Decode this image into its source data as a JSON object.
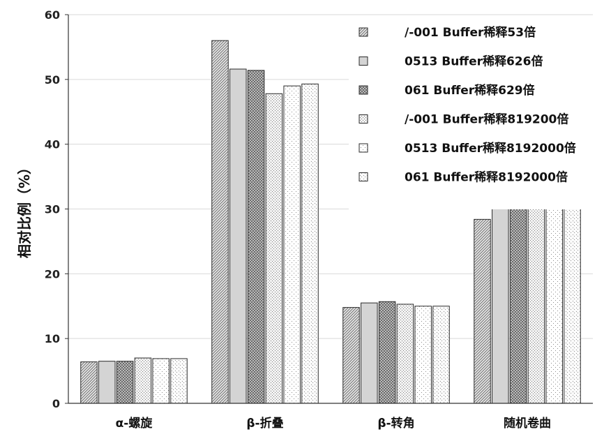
{
  "chart_data": {
    "type": "bar",
    "title": "",
    "xlabel": "",
    "ylabel": "相对比例（%）",
    "ylim": [
      0,
      60
    ],
    "yticks": [
      0,
      10,
      20,
      30,
      40,
      50,
      60
    ],
    "grid": true,
    "legend_position": "top-right",
    "categories": [
      "α-螺旋",
      "β-折叠",
      "β-转角",
      "随机卷曲"
    ],
    "series": [
      {
        "name": "/-001 Buffer稀释53倍",
        "values": [
          6.4,
          56.0,
          14.8,
          28.4
        ],
        "pattern": "diag",
        "color": "#9a9a9a"
      },
      {
        "name": "0513 Buffer稀释626倍",
        "values": [
          6.5,
          51.6,
          15.5,
          30.3
        ],
        "pattern": "solid",
        "color": "#d6d6d6"
      },
      {
        "name": "061 Buffer稀释629倍",
        "values": [
          6.5,
          51.4,
          15.7,
          30.3
        ],
        "pattern": "checker",
        "color": "#8a8a8a"
      },
      {
        "name": "/-001  Buffer稀释819200倍",
        "values": [
          7.0,
          47.8,
          15.3,
          32.3
        ],
        "pattern": "dots-dense",
        "color": "#bdbdbd"
      },
      {
        "name": "0513 Buffer稀释8192000倍",
        "values": [
          6.9,
          49.0,
          15.0,
          31.8
        ],
        "pattern": "dots-sparse",
        "color": "#cfcfcf"
      },
      {
        "name": "061 Buffer稀释8192000倍",
        "values": [
          6.9,
          49.3,
          15.0,
          31.8
        ],
        "pattern": "dots-fine",
        "color": "#c4c4c4"
      }
    ]
  }
}
